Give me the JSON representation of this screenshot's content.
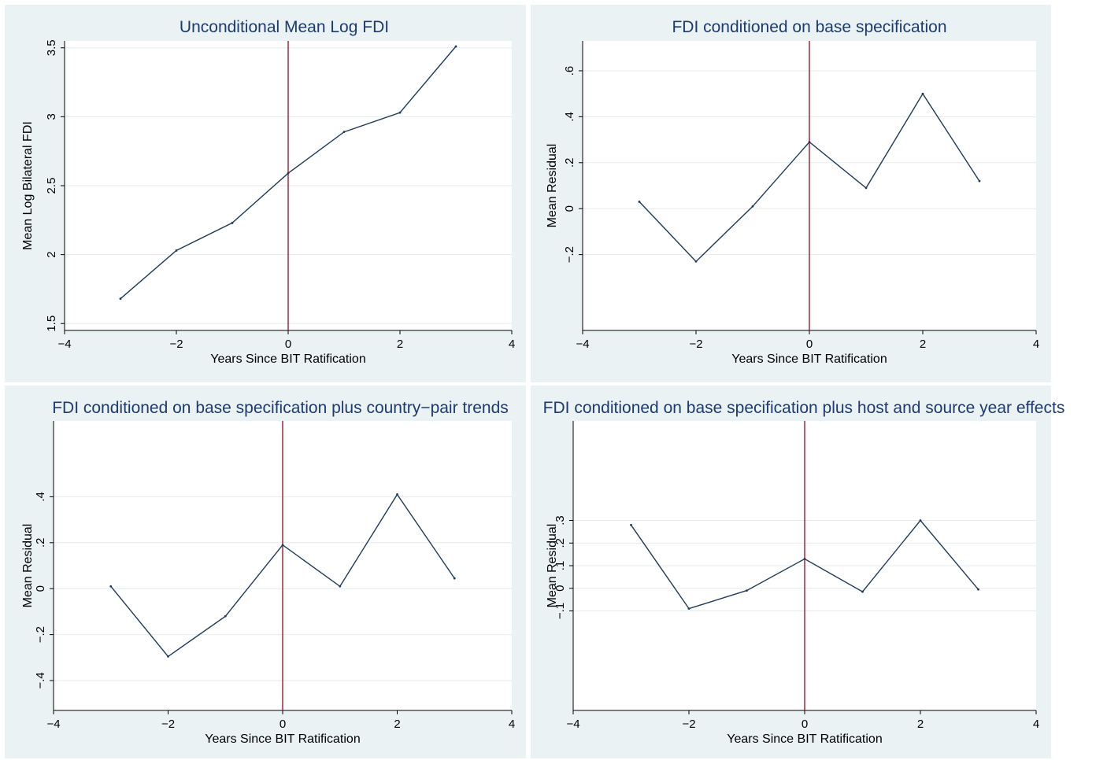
{
  "chart_data": [
    {
      "type": "line",
      "title": "Unconditional Mean Log FDI",
      "xlabel": "Years Since BIT Ratification",
      "ylabel": "Mean Log Bilateral FDI",
      "xlim": [
        -4,
        4
      ],
      "ylim": [
        1.45,
        3.55
      ],
      "xticks": [
        -4,
        -2,
        0,
        2,
        4
      ],
      "xtick_labels": [
        "−4",
        "−2",
        "0",
        "2",
        "4"
      ],
      "yticks": [
        1.5,
        2,
        2.5,
        3,
        3.5
      ],
      "ytick_labels": [
        "1.5",
        "2",
        "2.5",
        "3",
        "3.5"
      ],
      "reference_line_x": 0,
      "grid": true,
      "x": [
        -3,
        -2,
        -1,
        0,
        1,
        2,
        3
      ],
      "values": [
        1.68,
        2.03,
        2.23,
        2.59,
        2.89,
        3.03,
        3.51
      ]
    },
    {
      "type": "line",
      "title": "FDI conditioned on base specification",
      "xlabel": "Years Since BIT Ratification",
      "ylabel": "Mean Residual",
      "xlim": [
        -4,
        4
      ],
      "ylim": [
        -0.53,
        0.73
      ],
      "xticks": [
        -4,
        -2,
        0,
        2,
        4
      ],
      "xtick_labels": [
        "−4",
        "−2",
        "0",
        "2",
        "4"
      ],
      "yticks": [
        -0.2,
        0,
        0.2,
        0.4,
        0.6
      ],
      "ytick_labels": [
        "−.2",
        "0",
        ".2",
        ".4",
        ".6"
      ],
      "reference_line_x": 0,
      "grid": true,
      "x": [
        -3,
        -2,
        -1,
        0,
        1,
        2,
        3
      ],
      "values": [
        0.03,
        -0.23,
        0.01,
        0.29,
        0.09,
        0.5,
        0.12
      ]
    },
    {
      "type": "line",
      "title": "FDI conditioned on base specification plus country−pair trends",
      "xlabel": "Years Since BIT Ratification",
      "ylabel": "Mean Residual",
      "xlim": [
        -4,
        4
      ],
      "ylim": [
        -0.53,
        0.73
      ],
      "xticks": [
        -4,
        -2,
        0,
        2,
        4
      ],
      "xtick_labels": [
        "−4",
        "−2",
        "0",
        "2",
        "4"
      ],
      "yticks": [
        -0.4,
        -0.2,
        0,
        0.2,
        0.4
      ],
      "ytick_labels": [
        "−.4",
        "−.2",
        "0",
        ".2",
        ".4"
      ],
      "reference_line_x": 0,
      "grid": true,
      "x": [
        -3,
        -2,
        -1,
        0,
        1,
        2,
        3
      ],
      "values": [
        0.01,
        -0.295,
        -0.12,
        0.19,
        0.01,
        0.41,
        0.045
      ]
    },
    {
      "type": "line",
      "title": "FDI conditioned on base specification plus host and source year effects",
      "xlabel": "Years Since BIT Ratification",
      "ylabel": "Mean Residual",
      "xlim": [
        -4,
        4
      ],
      "ylim": [
        -0.54,
        0.74
      ],
      "xticks": [
        -4,
        -2,
        0,
        2,
        4
      ],
      "xtick_labels": [
        "−4",
        "−2",
        "0",
        "2",
        "4"
      ],
      "yticks": [
        -0.1,
        0,
        0.1,
        0.2,
        0.3
      ],
      "ytick_labels": [
        "−.1",
        "0",
        ".1",
        ".2",
        ".3"
      ],
      "reference_line_x": 0,
      "grid": true,
      "x": [
        -3,
        -2,
        -1,
        0,
        1,
        2,
        3
      ],
      "values": [
        0.28,
        -0.09,
        -0.01,
        0.13,
        -0.015,
        0.3,
        -0.005
      ]
    }
  ]
}
